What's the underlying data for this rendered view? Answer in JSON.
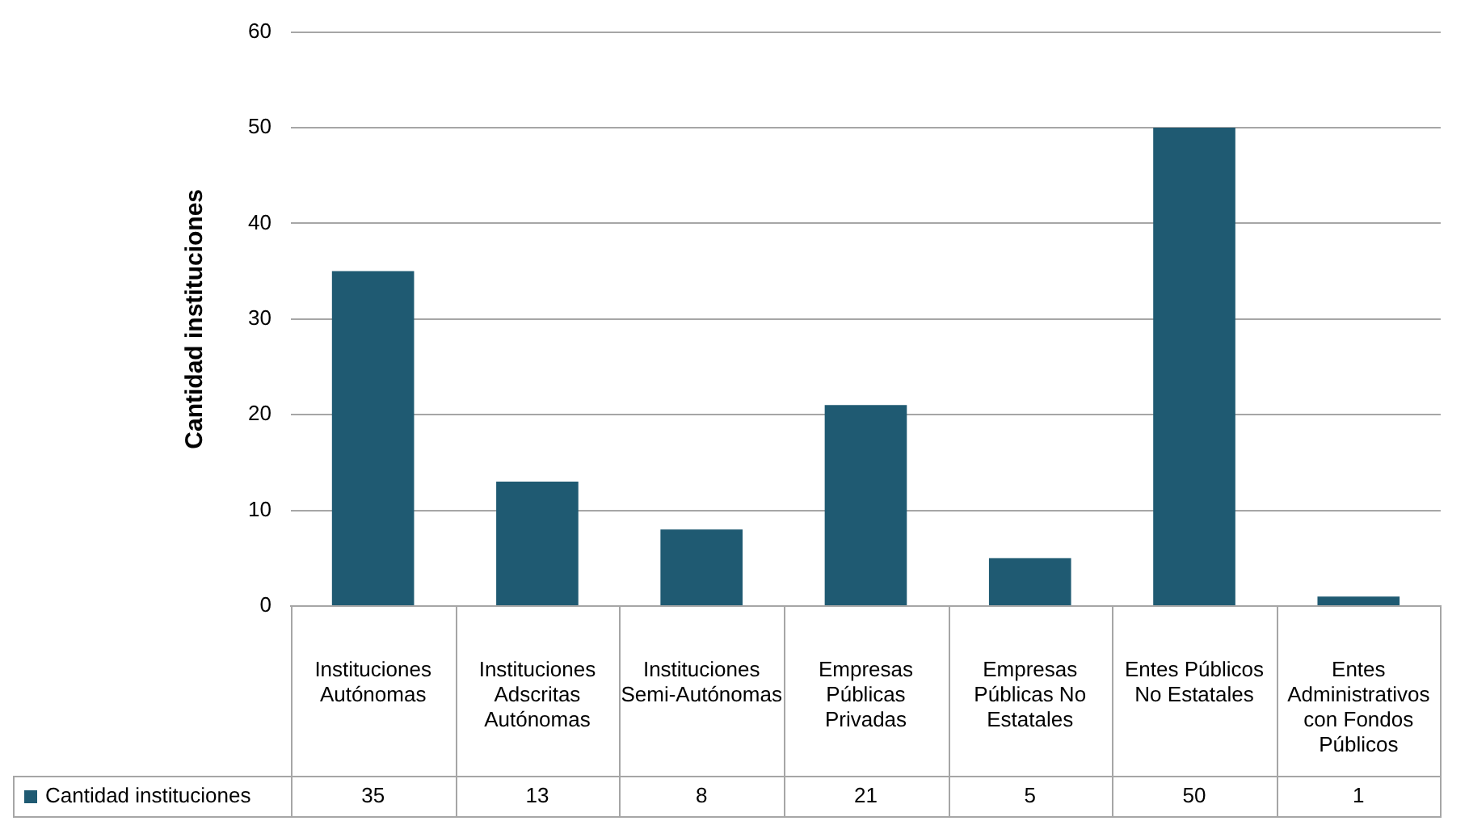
{
  "chart_data": {
    "type": "bar",
    "ylabel": "Cantidad instituciones",
    "categories": [
      "Instituciones Autónomas",
      "Instituciones Adscritas Autónomas",
      "Instituciones Semi-Autónomas",
      "Empresas Públicas Privadas",
      "Empresas Públicas No Estatales",
      "Entes Públicos No Estatales",
      "Entes Administrativos con Fondos Públicos"
    ],
    "series": [
      {
        "name": "Cantidad instituciones",
        "color": "#1f5a72",
        "values": [
          35,
          13,
          8,
          21,
          5,
          50,
          1
        ]
      }
    ],
    "ylim": [
      0,
      60
    ],
    "yticks": [
      0,
      10,
      20,
      30,
      40,
      50,
      60
    ],
    "grid": "y",
    "legend": "bottom left",
    "data_labels": true
  }
}
